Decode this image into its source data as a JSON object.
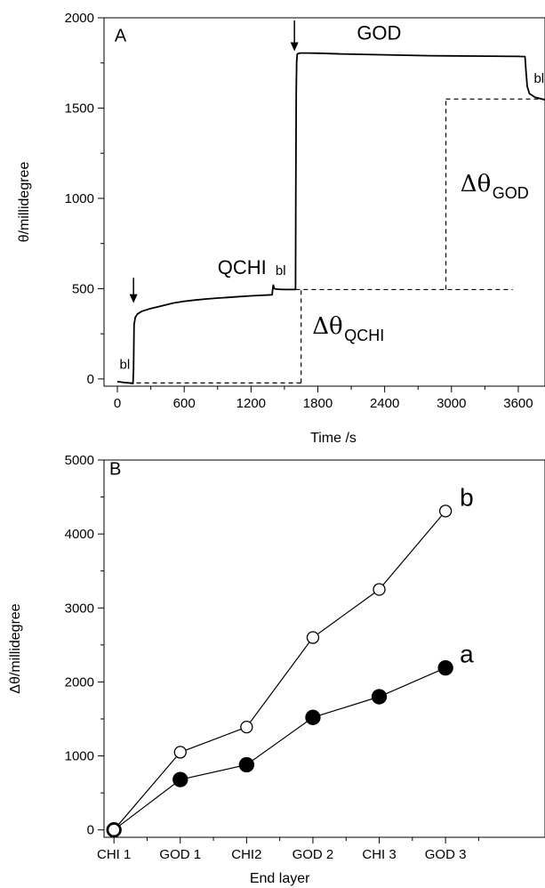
{
  "chart_data": [
    {
      "panel": "A",
      "type": "line",
      "xlabel": "Time /s",
      "ylabel": "θ/millidegree",
      "xlim": [
        -120,
        3840
      ],
      "ylim": [
        -40,
        2000
      ],
      "xticks": [
        0,
        600,
        1200,
        1800,
        2400,
        3000,
        3600
      ],
      "yticks": [
        0,
        500,
        1000,
        1500,
        2000
      ],
      "series": [
        {
          "x": [
            0,
            60,
            100,
            140,
            145,
            150,
            160,
            180,
            220,
            300,
            400,
            500,
            600,
            700,
            800,
            900,
            1000,
            1100,
            1200,
            1300,
            1390,
            1395,
            1400,
            1410,
            1420,
            1440,
            1460,
            1500,
            1560,
            1595,
            1600,
            1602,
            1606,
            1610,
            1616,
            1640,
            1700,
            1800,
            2000,
            2400,
            2800,
            3200,
            3600,
            3660,
            3670,
            3680,
            3700,
            3750,
            3800,
            3840
          ],
          "y": [
            -15,
            -20,
            -22,
            -25,
            50,
            300,
            340,
            360,
            375,
            390,
            405,
            420,
            430,
            437,
            443,
            448,
            452,
            456,
            460,
            463,
            466,
            500,
            520,
            500,
            498,
            497,
            496,
            495,
            495,
            495,
            495,
            1000,
            1600,
            1760,
            1800,
            1805,
            1805,
            1804,
            1800,
            1795,
            1790,
            1788,
            1786,
            1785,
            1700,
            1620,
            1580,
            1560,
            1552,
            1545
          ]
        }
      ],
      "dashed_lines": [
        {
          "x": [
            100,
            1650
          ],
          "y": [
            -22,
            -22
          ]
        },
        {
          "x": [
            1650,
            1650
          ],
          "y": [
            -22,
            495
          ]
        },
        {
          "x": [
            1600,
            3550
          ],
          "y": [
            495,
            495
          ]
        },
        {
          "x": [
            2950,
            2950
          ],
          "y": [
            495,
            1550
          ]
        },
        {
          "x": [
            2950,
            3840
          ],
          "y": [
            1550,
            1550
          ]
        }
      ],
      "arrows": [
        {
          "x": 145,
          "y_top": 560,
          "y_bottom": 420
        },
        {
          "x": 1590,
          "y_top": 1985,
          "y_bottom": 1815
        }
      ],
      "annotations": [
        {
          "id": "panel_letter",
          "text": "A",
          "x": -25,
          "y": 1870
        },
        {
          "id": "god",
          "text": "GOD",
          "x": 2150,
          "y": 1880
        },
        {
          "id": "qchi",
          "text": "QCHI",
          "x": 900,
          "y": 580
        },
        {
          "id": "bl_1",
          "text": "bl",
          "x": 20,
          "y": 55
        },
        {
          "id": "bl_2",
          "text": "bl",
          "x": 1420,
          "y": 575
        },
        {
          "id": "bl_3",
          "text": "bl",
          "x": 3740,
          "y": 1640
        }
      ],
      "delta_labels": [
        {
          "id": "d_qchi",
          "symbol": "Δθ",
          "sub": "QCHI",
          "x": 1750,
          "y": 250
        },
        {
          "id": "d_god",
          "symbol": "Δθ",
          "sub": "GOD",
          "x": 3080,
          "y": 1040
        }
      ]
    },
    {
      "panel": "B",
      "type": "line",
      "xlabel": "End layer",
      "ylabel": "Δθ/millidegree",
      "categories": [
        "CHI 1",
        "GOD 1",
        "CHI2",
        "GOD 2",
        "CHI 3",
        "GOD 3"
      ],
      "xlim": [
        -0.15,
        6.5
      ],
      "ylim": [
        -100,
        5000
      ],
      "yticks": [
        0,
        1000,
        2000,
        3000,
        4000,
        5000
      ],
      "series": [
        {
          "name": "a",
          "marker": "filled-circle",
          "values": [
            0,
            680,
            880,
            1520,
            1800,
            2190
          ]
        },
        {
          "name": "b",
          "marker": "open-circle",
          "values": [
            0,
            1050,
            1390,
            2600,
            3250,
            4310
          ]
        }
      ],
      "annotations": [
        {
          "id": "panel_letter",
          "text": "B",
          "x": -0.07,
          "y": 4800
        }
      ]
    }
  ]
}
